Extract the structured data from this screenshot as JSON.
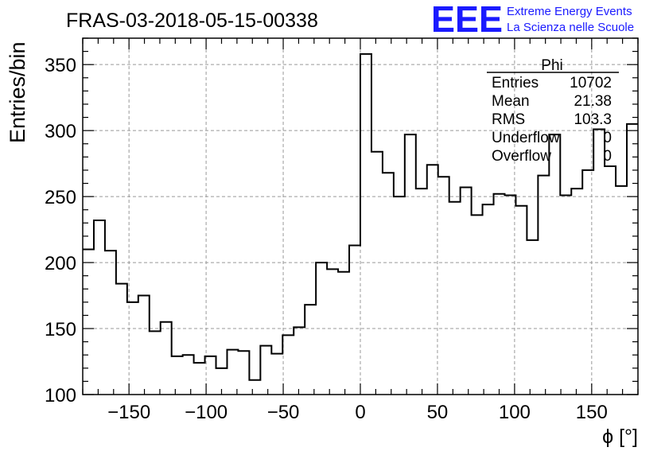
{
  "chart_data": {
    "type": "histogram",
    "title": "FRAS-03-2018-05-15-00338",
    "xlabel": "ϕ [°]",
    "ylabel": "Entries/bin",
    "xlim": [
      -180,
      180
    ],
    "ylim": [
      100,
      370
    ],
    "bin_width": 7.2,
    "xticks": [
      -150,
      -100,
      -50,
      0,
      50,
      100,
      150
    ],
    "xtick_labels": [
      "−150",
      "−100",
      "−50",
      "0",
      "50",
      "100",
      "150"
    ],
    "yticks": [
      100,
      150,
      200,
      250,
      300,
      350
    ],
    "ytick_labels": [
      "100",
      "150",
      "200",
      "250",
      "300",
      "350"
    ],
    "grid": true,
    "values": [
      210,
      232,
      209,
      184,
      170,
      175,
      148,
      155,
      129,
      130,
      124,
      129,
      120,
      134,
      133,
      111,
      137,
      131,
      145,
      151,
      168,
      200,
      195,
      193,
      213,
      358,
      284,
      268,
      250,
      297,
      256,
      274,
      265,
      246,
      257,
      236,
      244,
      252,
      251,
      243,
      217,
      266,
      297,
      251,
      256,
      270,
      301,
      273,
      258,
      305
    ]
  },
  "stats_box": {
    "title": "Phi",
    "rows": [
      {
        "label": "Entries",
        "value": "10702"
      },
      {
        "label": "Mean",
        "value": "21.38"
      },
      {
        "label": "RMS",
        "value": "103.3"
      },
      {
        "label": "Underflow",
        "value": "0"
      },
      {
        "label": "Overflow",
        "value": "0"
      }
    ]
  },
  "logo": {
    "mark": "EEE",
    "line1": "Extreme Energy Events",
    "line2": "La Scienza nelle Scuole",
    "color": "#1a1aff"
  }
}
